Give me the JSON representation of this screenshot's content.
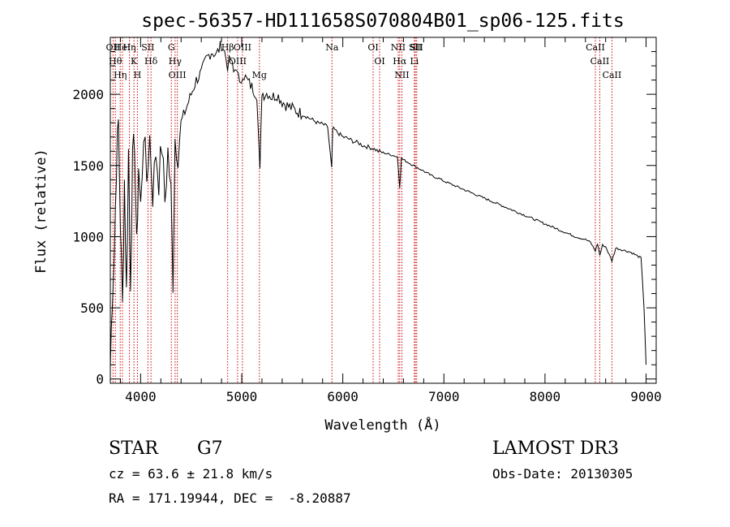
{
  "chart_data": {
    "type": "line",
    "title": "spec-56357-HD111658S070804B01_sp06-125.fits",
    "xlabel": "Wavelength (Å)",
    "ylabel": "Flux (relative)",
    "xlim": [
      3700,
      9100
    ],
    "ylim": [
      -30,
      2400
    ],
    "xticks": [
      4000,
      5000,
      6000,
      7000,
      8000,
      9000
    ],
    "yticks": [
      0,
      500,
      1000,
      1500,
      2000
    ],
    "grid": false,
    "series": [
      {
        "name": "flux",
        "x": [
          3700,
          3720,
          3740,
          3760,
          3780,
          3800,
          3820,
          3840,
          3860,
          3880,
          3900,
          3920,
          3940,
          3960,
          3980,
          4000,
          4030,
          4060,
          4090,
          4120,
          4150,
          4180,
          4210,
          4240,
          4270,
          4300,
          4320,
          4340,
          4370,
          4400,
          4450,
          4500,
          4550,
          4600,
          4650,
          4700,
          4750,
          4800,
          4830,
          4860,
          4890,
          4920,
          4950,
          4980,
          5010,
          5050,
          5100,
          5150,
          5180,
          5200,
          5220,
          5260,
          5300,
          5350,
          5400,
          5450,
          5500,
          5550,
          5600,
          5650,
          5700,
          5750,
          5800,
          5850,
          5890,
          5900,
          5920,
          5950,
          6000,
          6050,
          6100,
          6150,
          6200,
          6250,
          6300,
          6350,
          6400,
          6450,
          6500,
          6540,
          6563,
          6580,
          6600,
          6650,
          6700,
          6750,
          6800,
          6850,
          6900,
          6950,
          7000,
          7100,
          7200,
          7300,
          7400,
          7500,
          7600,
          7700,
          7800,
          7900,
          8000,
          8100,
          8200,
          8300,
          8400,
          8450,
          8498,
          8520,
          8542,
          8570,
          8600,
          8662,
          8700,
          8750,
          8800,
          8850,
          8900,
          8950,
          8980,
          9000
        ],
        "y": [
          80,
          600,
          900,
          1500,
          1800,
          1100,
          500,
          1400,
          600,
          1600,
          700,
          1500,
          1700,
          900,
          1500,
          1200,
          1750,
          1400,
          1700,
          1300,
          1600,
          1400,
          1650,
          1250,
          1600,
          1300,
          700,
          1700,
          1600,
          1800,
          1900,
          2000,
          2100,
          2150,
          2250,
          2300,
          2280,
          2350,
          2300,
          2200,
          2250,
          2150,
          2200,
          2050,
          2150,
          2100,
          2050,
          2000,
          1450,
          2020,
          2000,
          2010,
          1980,
          2000,
          1950,
          1920,
          1900,
          1880,
          1860,
          1840,
          1820,
          1800,
          1790,
          1770,
          1480,
          1760,
          1750,
          1730,
          1700,
          1690,
          1670,
          1660,
          1640,
          1630,
          1620,
          1600,
          1590,
          1580,
          1570,
          1560,
          1350,
          1550,
          1540,
          1520,
          1500,
          1480,
          1460,
          1440,
          1420,
          1410,
          1390,
          1360,
          1330,
          1300,
          1270,
          1240,
          1210,
          1180,
          1150,
          1120,
          1090,
          1060,
          1030,
          1000,
          980,
          960,
          900,
          950,
          870,
          940,
          930,
          830,
          920,
          910,
          900,
          890,
          870,
          850,
          500,
          100
        ]
      }
    ],
    "lines": [
      {
        "wl": 3727,
        "label": "OII"
      },
      {
        "wl": 3750,
        "label": "Hθ"
      },
      {
        "wl": 3798,
        "label": "Hη"
      },
      {
        "wl": 3820,
        "label": "HeI"
      },
      {
        "wl": 3889,
        "label": "Hη"
      },
      {
        "wl": 3934,
        "label": "K"
      },
      {
        "wl": 3968,
        "label": "H"
      },
      {
        "wl": 4072,
        "label": "SII"
      },
      {
        "wl": 4102,
        "label": "Hδ"
      },
      {
        "wl": 4304,
        "label": "G"
      },
      {
        "wl": 4341,
        "label": "Hγ"
      },
      {
        "wl": 4363,
        "label": "OIII"
      },
      {
        "wl": 4861,
        "label": "Hβ"
      },
      {
        "wl": 4959,
        "label": "OIII"
      },
      {
        "wl": 5007,
        "label": "OIII"
      },
      {
        "wl": 5175,
        "label": "Mg"
      },
      {
        "wl": 5893,
        "label": "Na"
      },
      {
        "wl": 6300,
        "label": "OI"
      },
      {
        "wl": 6364,
        "label": "OI"
      },
      {
        "wl": 6548,
        "label": "NII"
      },
      {
        "wl": 6563,
        "label": "Hα"
      },
      {
        "wl": 6584,
        "label": "NII"
      },
      {
        "wl": 6708,
        "label": "Li"
      },
      {
        "wl": 6717,
        "label": "SII"
      },
      {
        "wl": 6731,
        "label": "SII"
      },
      {
        "wl": 8498,
        "label": "CaII"
      },
      {
        "wl": 8542,
        "label": "CaII"
      },
      {
        "wl": 8662,
        "label": "CaII"
      }
    ],
    "line_color": "#cc0000"
  },
  "info": {
    "object_type": "STAR",
    "subclass": "G7",
    "survey": "LAMOST DR3",
    "cz": "cz = 63.6 ± 21.8 km/s",
    "obs_date": "Obs-Date: 20130305",
    "coords": "RA = 171.19944, DEC =  -8.20887"
  }
}
